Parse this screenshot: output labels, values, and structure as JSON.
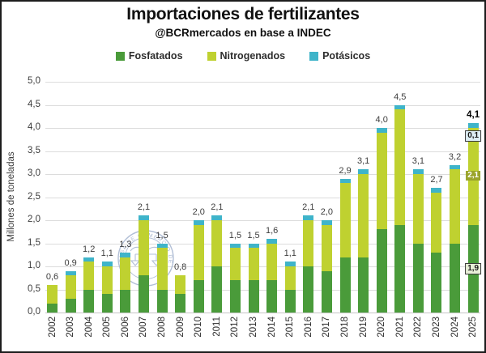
{
  "header": {
    "title": "Importaciones de fertilizantes",
    "subtitle": "@BCRmercados en base a INDEC"
  },
  "legend": {
    "items": [
      {
        "id": "fosfatados",
        "label": "Fosfatados",
        "color": "#4a9b3a"
      },
      {
        "id": "nitrogenados",
        "label": "Nitrogenados",
        "color": "#bfd130"
      },
      {
        "id": "potasicos",
        "label": "Potásicos",
        "color": "#3fb4c9"
      }
    ]
  },
  "watermark": {
    "icon": "scales-caduceus-seal-icon",
    "text": "BOLSA DE COMERCIO DE ROSARIO",
    "color": "#aab9d2"
  },
  "chart_data": {
    "type": "bar",
    "stacked": true,
    "title": "Importaciones de fertilizantes",
    "subtitle": "@BCRmercados en base a INDEC",
    "xlabel": "",
    "ylabel": "Millones de toneladas",
    "ylim": [
      0,
      5
    ],
    "ytick_labels": [
      "5,0",
      "4,5",
      "4,0",
      "3,5",
      "3,0",
      "2,5",
      "2,0",
      "1,5",
      "1,0",
      "0,5",
      "0,0"
    ],
    "grid": "horizontal",
    "legend_position": "top",
    "categories": [
      "2002",
      "2003",
      "2004",
      "2005",
      "2006",
      "2007",
      "2008",
      "2009",
      "2010",
      "2011",
      "2012",
      "2013",
      "2014",
      "2015",
      "2016",
      "2017",
      "2018",
      "2019",
      "2020",
      "2021",
      "2022",
      "2023",
      "2024",
      "2025"
    ],
    "series": [
      {
        "name": "Fosfatados",
        "color": "#4a9b3a",
        "values": [
          0.2,
          0.3,
          0.5,
          0.4,
          0.5,
          0.8,
          0.5,
          0.4,
          0.7,
          1.0,
          0.7,
          0.7,
          0.7,
          0.5,
          1.0,
          0.9,
          1.2,
          1.2,
          1.8,
          1.9,
          1.5,
          1.3,
          1.5,
          1.9
        ]
      },
      {
        "name": "Nitrogenados",
        "color": "#bfd130",
        "values": [
          0.4,
          0.5,
          0.6,
          0.6,
          0.7,
          1.2,
          0.9,
          0.4,
          1.2,
          1.0,
          0.7,
          0.7,
          0.8,
          0.5,
          1.0,
          1.0,
          1.6,
          1.8,
          2.1,
          2.5,
          1.5,
          1.3,
          1.6,
          2.1
        ]
      },
      {
        "name": "Potásicos",
        "color": "#3fb4c9",
        "values": [
          0.0,
          0.1,
          0.1,
          0.1,
          0.1,
          0.1,
          0.1,
          0.0,
          0.1,
          0.1,
          0.1,
          0.1,
          0.1,
          0.1,
          0.1,
          0.1,
          0.1,
          0.1,
          0.1,
          0.1,
          0.1,
          0.1,
          0.1,
          0.1
        ]
      }
    ],
    "total_labels": [
      "0,6",
      "0,9",
      "1,2",
      "1,1",
      "1,3",
      "2,1",
      "1,5",
      "0,8",
      "2,0",
      "2,1",
      "1,5",
      "1,5",
      "1,6",
      "1,1",
      "2,1",
      "2,0",
      "2,9",
      "3,1",
      "4,0",
      "4,5",
      "3,1",
      "2,7",
      "3,2",
      "4,1"
    ],
    "highlight_category": "2025",
    "highlight_total_label": "4,1",
    "highlight_segment_labels": [
      {
        "series": "Fosfatados",
        "label": "1,9",
        "bg": "#e9f0d8",
        "fg": "#1a1a1a",
        "bordered": true
      },
      {
        "series": "Nitrogenados",
        "label": "2,1",
        "bg": "#9aa42a",
        "fg": "#ffffff",
        "bordered": false
      },
      {
        "series": "Potásicos",
        "label": "0,1",
        "bg": "#ddedf4",
        "fg": "#1a1a1a",
        "bordered": true
      }
    ]
  }
}
